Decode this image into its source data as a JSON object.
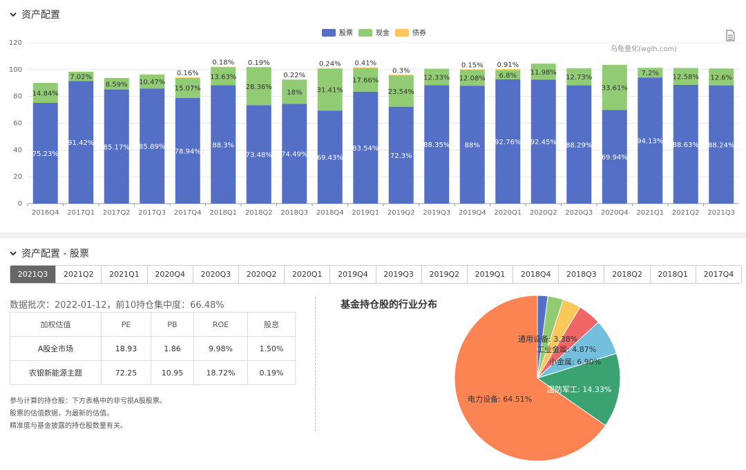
{
  "section1": {
    "title": "资产配置"
  },
  "section2": {
    "title": "资产配置 - 股票"
  },
  "watermark": "乌龟量化(wglh.com)",
  "legend": [
    {
      "name": "股票",
      "color": "#5470c6"
    },
    {
      "name": "现金",
      "color": "#91cc75"
    },
    {
      "name": "债券",
      "color": "#fac858"
    }
  ],
  "tabs": [
    "2021Q3",
    "2021Q2",
    "2021Q1",
    "2020Q4",
    "2020Q3",
    "2020Q2",
    "2020Q1",
    "2019Q4",
    "2019Q3",
    "2019Q2",
    "2019Q1",
    "2018Q4",
    "2018Q3",
    "2018Q2",
    "2018Q1",
    "2017Q4"
  ],
  "active_tab": "2021Q3",
  "batch_info": "数据批次：2022-01-12，前10持仓集中度：66.48%",
  "valuation_table": {
    "headers": [
      "加权估值",
      "PE",
      "PB",
      "ROE",
      "股息"
    ],
    "rows": [
      [
        "A股全市场",
        "18.93",
        "1.86",
        "9.98%",
        "1.50%"
      ],
      [
        "农银新能源主题",
        "72.25",
        "10.95",
        "18.72%",
        "0.19%"
      ]
    ]
  },
  "notes": [
    "参与计算的持仓股：下方表格中的非亏损A股股票。",
    "股票的估值数据，为最新的估值。",
    "精准度与基金披露的持仓股数量有关。"
  ],
  "pie_title": "基金持仓股的行业分布",
  "chart_data": [
    {
      "type": "bar",
      "stacked": true,
      "categories": [
        "2016Q4",
        "2017Q1",
        "2017Q2",
        "2017Q3",
        "2017Q4",
        "2018Q1",
        "2018Q2",
        "2018Q3",
        "2018Q4",
        "2019Q1",
        "2019Q2",
        "2019Q3",
        "2019Q4",
        "2020Q1",
        "2020Q2",
        "2020Q3",
        "2020Q4",
        "2021Q1",
        "2021Q2",
        "2021Q3"
      ],
      "series": [
        {
          "name": "股票",
          "values": [
            75.23,
            91.42,
            85.17,
            85.89,
            78.94,
            88.3,
            73.48,
            74.49,
            69.43,
            83.54,
            72.3,
            88.35,
            88,
            92.76,
            92.45,
            88.29,
            69.94,
            94.13,
            88.63,
            88.24
          ]
        },
        {
          "name": "现金",
          "values": [
            14.84,
            7.02,
            8.59,
            10.47,
            15.07,
            13.63,
            28.36,
            18,
            31.41,
            17.66,
            23.54,
            12.33,
            12.08,
            6.8,
            11.98,
            12.73,
            33.61,
            7.2,
            12.58,
            12.6
          ]
        },
        {
          "name": "债券",
          "values": [
            null,
            null,
            null,
            null,
            0.16,
            0.18,
            0.19,
            0.22,
            0.24,
            0.41,
            0.3,
            null,
            0.15,
            0.91,
            null,
            null,
            null,
            null,
            null,
            null
          ]
        }
      ],
      "ylim": [
        0,
        120
      ],
      "yticks": [
        0,
        20,
        40,
        60,
        80,
        100,
        120
      ],
      "grid": true,
      "legend_position": "top-center"
    },
    {
      "type": "pie",
      "title": "基金持仓股的行业分布",
      "slices": [
        {
          "name": "",
          "value": 2.0,
          "color": "#5470c6"
        },
        {
          "name": "",
          "value": 3.0,
          "color": "#91cc75"
        },
        {
          "name": "",
          "value": 3.5,
          "color": "#fac858"
        },
        {
          "name": "",
          "value": 4.5,
          "color": "#ee6666"
        },
        {
          "name": "小金属",
          "value": 6.9,
          "label": "小金属: 6.90%",
          "color": "#73c0de"
        },
        {
          "name": "国防军工",
          "value": 14.33,
          "label": "国防军工: 14.33%",
          "color": "#3ba272"
        },
        {
          "name": "电力设备",
          "value": 64.51,
          "label": "电力设备: 64.51%",
          "color": "#fc8452"
        }
      ],
      "extra_labels": [
        {
          "name": "通用设备",
          "label": "通用设备: 3.38%"
        },
        {
          "name": "工业金属",
          "label": "工业金属: 4.87%"
        }
      ]
    }
  ]
}
